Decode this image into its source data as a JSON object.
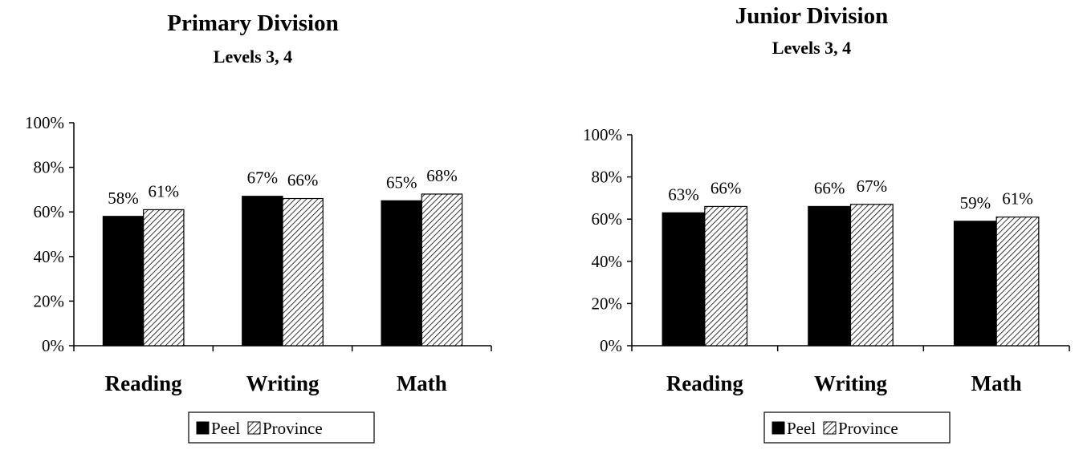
{
  "chart_data": [
    {
      "type": "bar",
      "title": "Primary Division",
      "subtitle": "Levels 3, 4",
      "categories": [
        "Reading",
        "Writing",
        "Math"
      ],
      "series": [
        {
          "name": "Peel",
          "values": [
            58,
            67,
            65
          ],
          "labels": [
            "58%",
            "67%",
            "65%"
          ]
        },
        {
          "name": "Province",
          "values": [
            61,
            66,
            68
          ],
          "labels": [
            "61%",
            "66%",
            "68%"
          ]
        }
      ],
      "ylim": [
        0,
        100
      ],
      "yticks": [
        "0%",
        "20%",
        "40%",
        "60%",
        "80%",
        "100%"
      ],
      "xlabel": "",
      "ylabel": "",
      "grid": false,
      "legend_position": "bottom"
    },
    {
      "type": "bar",
      "title": "Junior Division",
      "subtitle": "Levels 3, 4",
      "categories": [
        "Reading",
        "Writing",
        "Math"
      ],
      "series": [
        {
          "name": "Peel",
          "values": [
            63,
            66,
            59
          ],
          "labels": [
            "63%",
            "66%",
            "59%"
          ]
        },
        {
          "name": "Province",
          "values": [
            66,
            67,
            61
          ],
          "labels": [
            "66%",
            "67%",
            "61%"
          ]
        }
      ],
      "ylim": [
        0,
        100
      ],
      "yticks": [
        "0%",
        "20%",
        "40%",
        "60%",
        "80%",
        "100%"
      ],
      "xlabel": "",
      "ylabel": "",
      "grid": false,
      "legend_position": "bottom"
    }
  ],
  "colors": {
    "peel": "#000000",
    "province_pattern": "diagonal-hatch"
  }
}
